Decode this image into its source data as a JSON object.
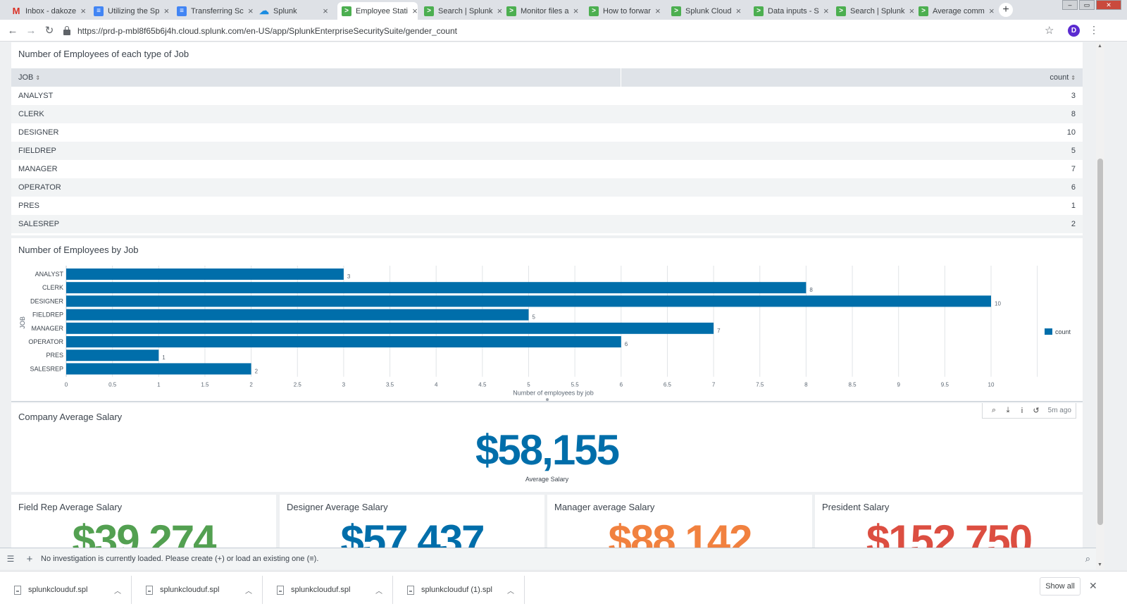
{
  "browser": {
    "tabs": [
      {
        "label": "Inbox - dakoze",
        "icon": "gmail-icon",
        "active": false
      },
      {
        "label": "Utilizing the Sp",
        "icon": "docs-icon",
        "active": false
      },
      {
        "label": "Transferring Sc",
        "icon": "docs-icon",
        "active": false
      },
      {
        "label": "Splunk",
        "icon": "splunk-cloud-icon",
        "active": false
      },
      {
        "label": "Employee Stati",
        "icon": "splunk-icon",
        "active": true
      },
      {
        "label": "Search | Splunk",
        "icon": "splunk-icon",
        "active": false
      },
      {
        "label": "Monitor files a",
        "icon": "splunk-icon",
        "active": false
      },
      {
        "label": "How to forwar",
        "icon": "splunk-icon",
        "active": false
      },
      {
        "label": "Splunk Cloud",
        "icon": "splunk-icon",
        "active": false
      },
      {
        "label": "Data inputs - S",
        "icon": "splunk-icon",
        "active": false
      },
      {
        "label": "Search | Splunk",
        "icon": "splunk-icon",
        "active": false
      },
      {
        "label": "Average comm",
        "icon": "splunk-icon",
        "active": false
      }
    ],
    "url": "https://prd-p-mbl8f65b6j4h.cloud.splunk.com/en-US/app/SplunkEnterpriseSecuritySuite/gender_count",
    "profile_initial": "D"
  },
  "table_panel": {
    "title": "Number of Employees of each type of Job",
    "col_job": "JOB",
    "col_count": "count",
    "rows": [
      {
        "job": "ANALYST",
        "count": "3"
      },
      {
        "job": "CLERK",
        "count": "8"
      },
      {
        "job": "DESIGNER",
        "count": "10"
      },
      {
        "job": "FIELDREP",
        "count": "5"
      },
      {
        "job": "MANAGER",
        "count": "7"
      },
      {
        "job": "OPERATOR",
        "count": "6"
      },
      {
        "job": "PRES",
        "count": "1"
      },
      {
        "job": "SALESREP",
        "count": "2"
      }
    ]
  },
  "chart_panel": {
    "title": "Number of Employees by Job"
  },
  "chart_data": {
    "type": "bar",
    "orientation": "horizontal",
    "categories": [
      "ANALYST",
      "CLERK",
      "DESIGNER",
      "FIELDREP",
      "MANAGER",
      "OPERATOR",
      "PRES",
      "SALESREP"
    ],
    "series": [
      {
        "name": "count",
        "values": [
          3,
          8,
          10,
          5,
          7,
          6,
          1,
          2
        ],
        "color": "#006eaa"
      }
    ],
    "xlabel": "Number of employees by job",
    "ylabel": "JOB",
    "xlim": [
      0,
      10.5
    ],
    "xticks": [
      "0",
      "0.5",
      "1",
      "1.5",
      "2",
      "2.5",
      "3",
      "3.5",
      "4",
      "4.5",
      "5",
      "5.5",
      "6",
      "6.5",
      "7",
      "7.5",
      "8",
      "8.5",
      "9",
      "9.5",
      "10"
    ],
    "grid": true,
    "legend": "right"
  },
  "avg_panel": {
    "title": "Company Average Salary",
    "value": "$58,155",
    "caption": "Average Salary",
    "color": "#006eaa",
    "updated": "5m ago"
  },
  "salary_panels": [
    {
      "title": "Field Rep Average Salary",
      "value": "$39,274",
      "color": "#53a051"
    },
    {
      "title": "Designer Average Salary",
      "value": "$57,437",
      "color": "#006eaa"
    },
    {
      "title": "Manager average Salary",
      "value": "$88,142",
      "color": "#f1813f"
    },
    {
      "title": "President Salary",
      "value": "$152,750",
      "color": "#dc4e41"
    }
  ],
  "investigation_bar": {
    "message": "No investigation is currently loaded. Please create (+) or load an existing one (≡)."
  },
  "downloads": {
    "items": [
      "splunkclouduf.spl",
      "splunkclouduf.spl",
      "splunkclouduf.spl",
      "splunkclouduf (1).spl"
    ],
    "show_all": "Show all"
  }
}
